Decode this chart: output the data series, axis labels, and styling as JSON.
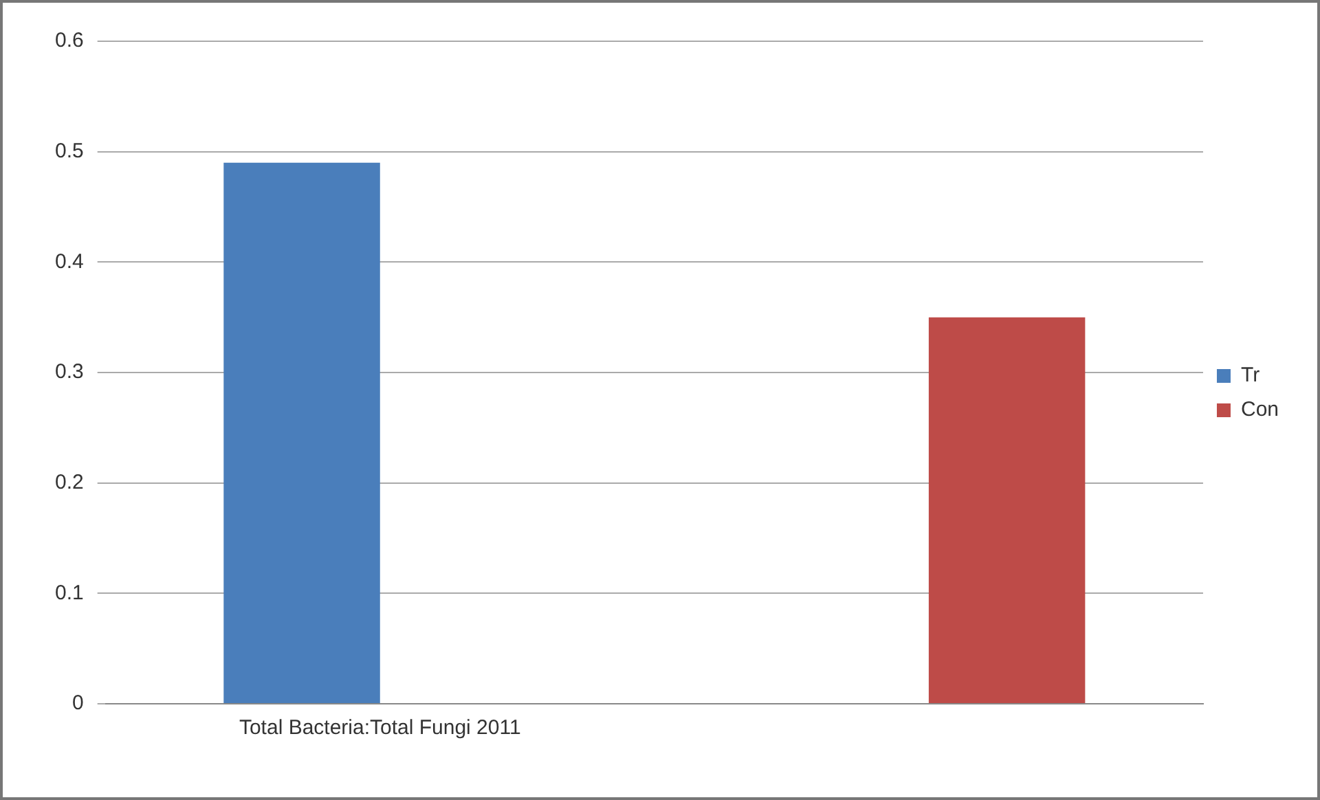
{
  "chart_data": {
    "type": "bar",
    "categories": [
      "Total Bacteria:Total Fungi 2011",
      null
    ],
    "series": [
      {
        "name": "Tr",
        "color": "#4a7ebb",
        "values": [
          0.49,
          null
        ]
      },
      {
        "name": "Con",
        "color": "#be4b48",
        "values": [
          null,
          0.35
        ]
      }
    ],
    "ylim": [
      0,
      0.6
    ],
    "yticks": [
      0,
      0.1,
      0.2,
      0.3,
      0.4,
      0.5,
      0.6
    ],
    "grid": "y",
    "legend": "right"
  }
}
